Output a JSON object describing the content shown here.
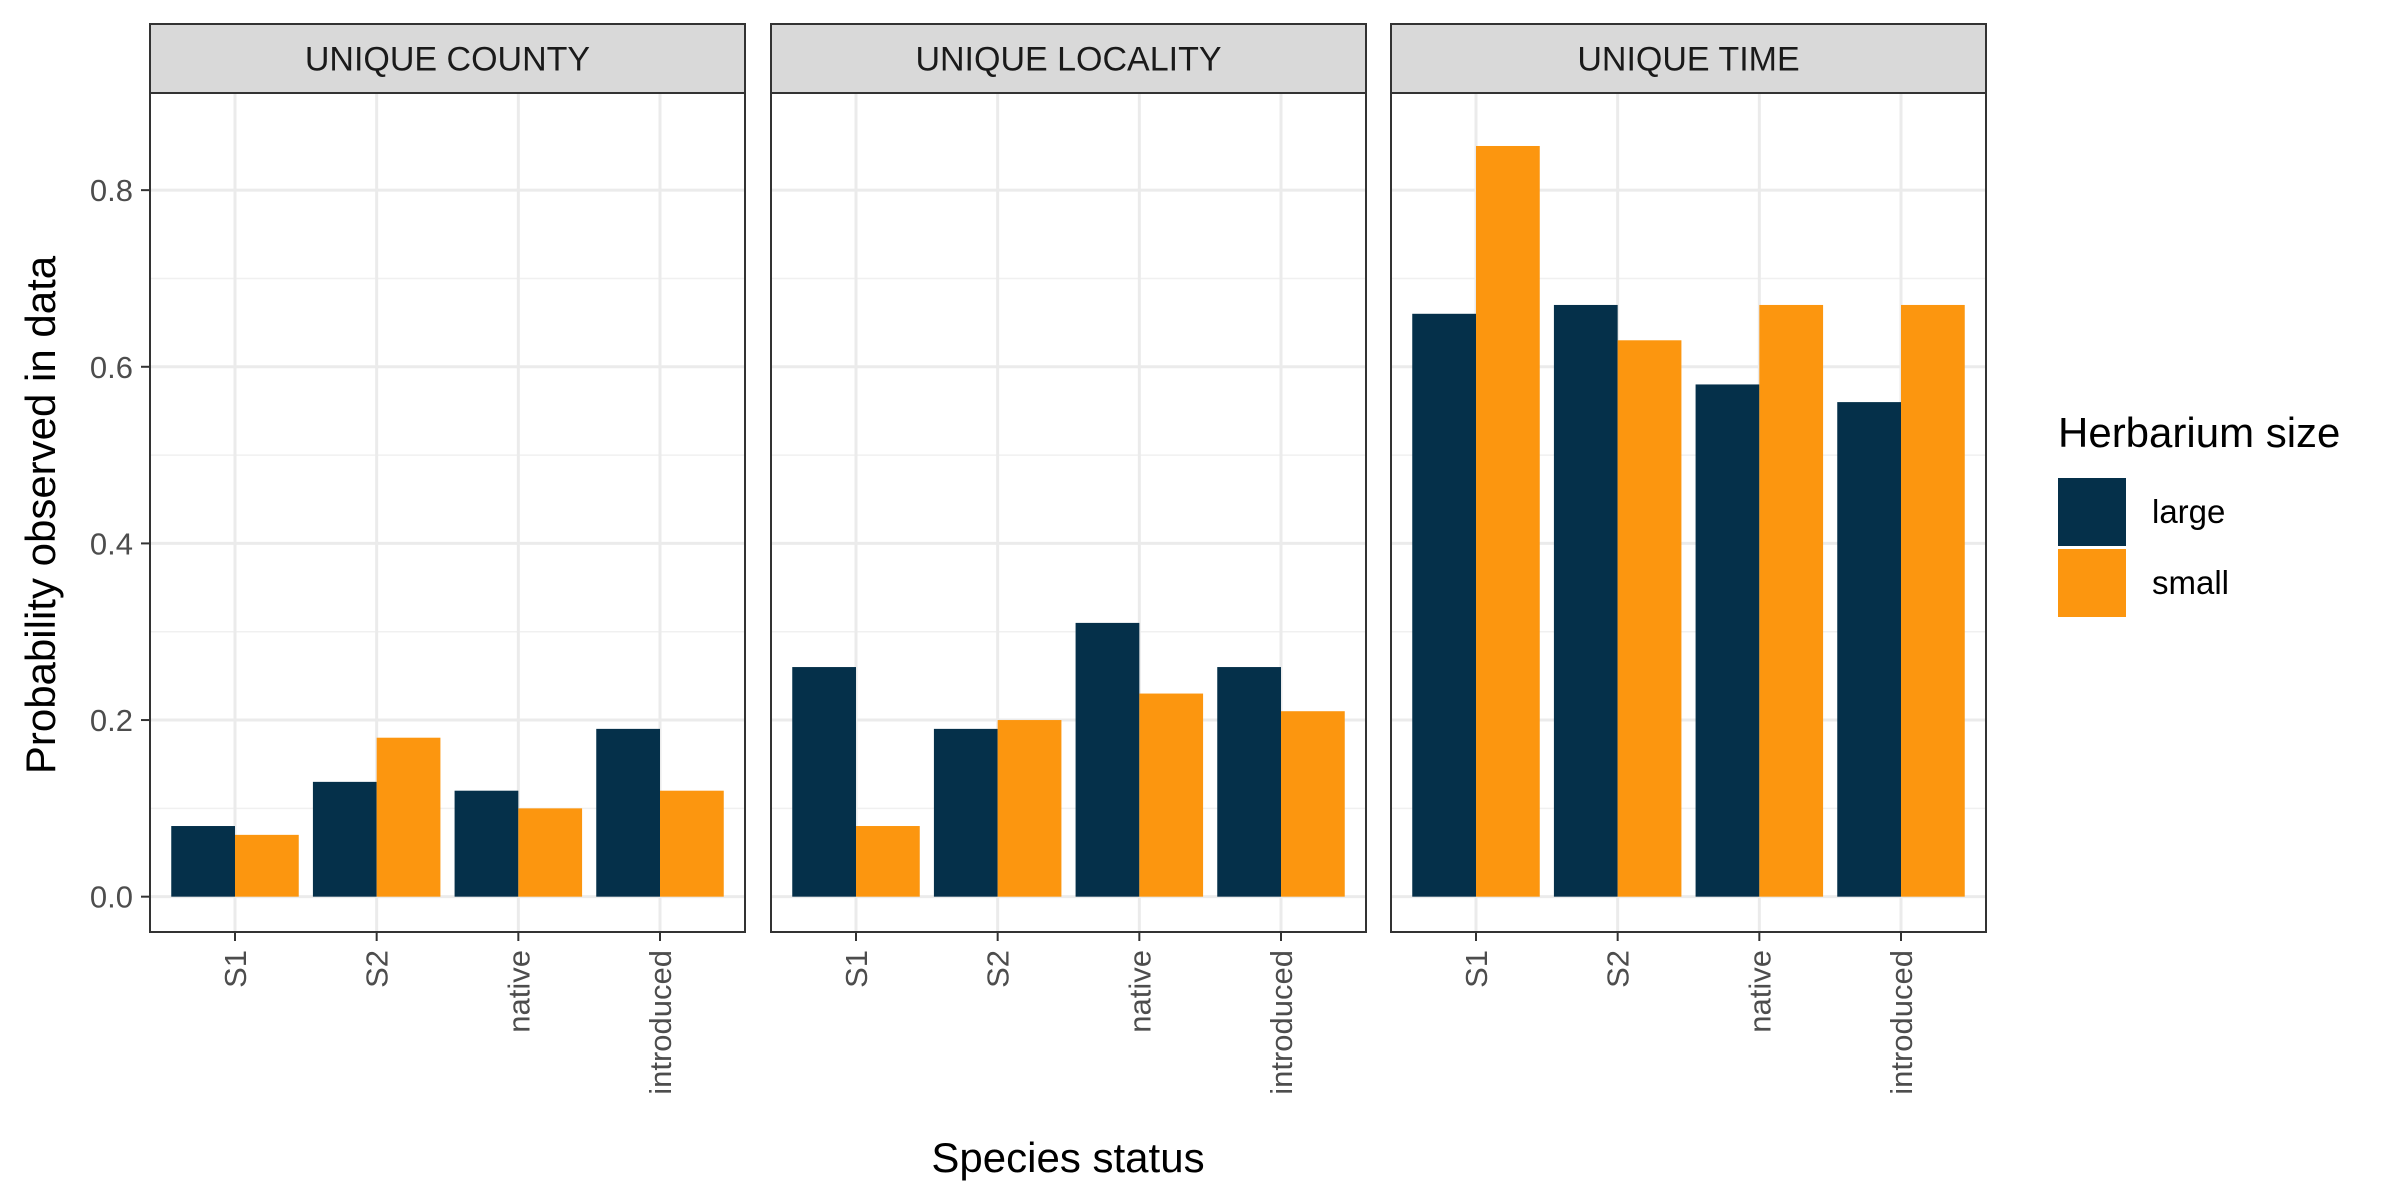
{
  "chart_data": {
    "type": "bar",
    "layout": "faceted",
    "xlabel": "Species status",
    "ylabel": "Probability observed in data",
    "ylim": [
      -0.04,
      0.91
    ],
    "yticks": [
      0.0,
      0.2,
      0.4,
      0.6,
      0.8
    ],
    "ytick_labels": [
      "0.0",
      "0.2",
      "0.4",
      "0.6",
      "0.8"
    ],
    "categories": [
      "S1",
      "S2",
      "native",
      "introduced"
    ],
    "grid": true,
    "legend": {
      "title": "Herbarium size",
      "placement": "right",
      "entries": [
        "large",
        "small"
      ]
    },
    "series_colors": {
      "large": "#05304a",
      "small": "#fc960f"
    },
    "facets": [
      {
        "label": "UNIQUE COUNTY",
        "series": [
          {
            "name": "large",
            "values": [
              0.08,
              0.13,
              0.12,
              0.19
            ]
          },
          {
            "name": "small",
            "values": [
              0.07,
              0.18,
              0.1,
              0.12
            ]
          }
        ]
      },
      {
        "label": "UNIQUE LOCALITY",
        "series": [
          {
            "name": "large",
            "values": [
              0.26,
              0.19,
              0.31,
              0.26
            ]
          },
          {
            "name": "small",
            "values": [
              0.08,
              0.2,
              0.23,
              0.21
            ]
          }
        ]
      },
      {
        "label": "UNIQUE TIME",
        "series": [
          {
            "name": "large",
            "values": [
              0.66,
              0.67,
              0.58,
              0.56
            ]
          },
          {
            "name": "small",
            "values": [
              0.85,
              0.63,
              0.67,
              0.67
            ]
          }
        ]
      }
    ]
  }
}
